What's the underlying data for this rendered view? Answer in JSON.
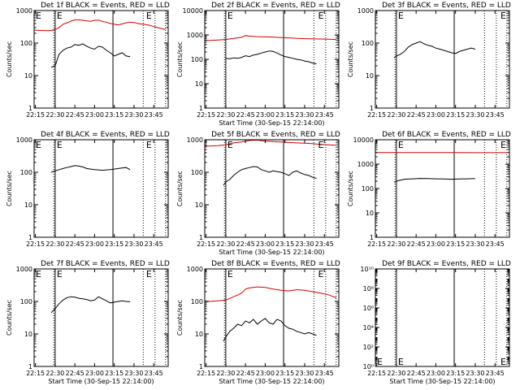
{
  "figure": {
    "x_tick_labels": [
      "22:15",
      "22:30",
      "22:45",
      "23:00",
      "23:15",
      "23:30",
      "23:45"
    ],
    "x_tick_hours": [
      22.25,
      22.5,
      22.75,
      23.0,
      23.25,
      23.5,
      23.75
    ],
    "x_range_hours": [
      22.2333,
      23.9333
    ],
    "xlabel": "Start Time (30-Sep-15 22:14:00)",
    "ylabel": "Counts/sec",
    "solid_vlines_hours": [
      22.5,
      23.233
    ],
    "dotted_vlines_hours": [
      22.483,
      23.617,
      23.767,
      23.9
    ],
    "marker_letter": "E",
    "colors": {
      "events": "#000000",
      "lld": "#d40000",
      "axes": "#000000",
      "background": "#ffffff"
    }
  },
  "chart_data": [
    {
      "type": "line",
      "title": "Det 1f BLACK = Events, RED = LLD",
      "xlabel": "",
      "ylabel": "Counts/sec",
      "y_scale": "log",
      "ylim": [
        1,
        1000
      ],
      "y_tick_labels": [
        "1",
        "10",
        "100",
        "1000"
      ],
      "markers": [
        {
          "label": "E",
          "x_hour": 22.233,
          "y": 1000
        },
        {
          "label": "E",
          "x_hour": 22.5,
          "y": 1000
        },
        {
          "label": "E",
          "x_hour": 23.633,
          "y": 1000
        }
      ],
      "series": [
        {
          "color": "#d40000",
          "x_hours": [
            22.233,
            22.4,
            22.45,
            22.5,
            22.55,
            22.6,
            22.65,
            22.7,
            22.75,
            22.8,
            22.85,
            22.9,
            22.95,
            23.0,
            23.05,
            23.1,
            23.15,
            23.2,
            23.25,
            23.3,
            23.35,
            23.4,
            23.45,
            23.5,
            23.55,
            23.6,
            23.65,
            23.7,
            23.75,
            23.8,
            23.85,
            23.9
          ],
          "values": [
            250,
            240,
            245,
            260,
            300,
            380,
            420,
            470,
            520,
            520,
            500,
            480,
            470,
            500,
            510,
            460,
            440,
            400,
            380,
            360,
            390,
            420,
            440,
            430,
            400,
            380,
            370,
            350,
            320,
            300,
            280,
            260
          ]
        },
        {
          "color": "#000000",
          "x_hours": [
            22.45,
            22.5,
            22.55,
            22.6,
            22.65,
            22.7,
            22.75,
            22.8,
            22.85,
            22.9,
            22.95,
            23.0,
            23.05,
            23.1,
            23.15,
            23.2,
            23.25,
            23.3,
            23.35,
            23.4,
            23.45
          ],
          "values": [
            18,
            20,
            45,
            60,
            70,
            75,
            90,
            85,
            95,
            80,
            70,
            65,
            80,
            75,
            60,
            50,
            40,
            45,
            50,
            40,
            38
          ]
        }
      ]
    },
    {
      "type": "line",
      "title": "Det 2f BLACK = Events, RED = LLD",
      "xlabel": "Start Time (30-Sep-15 22:14:00)",
      "ylabel": "Counts/sec",
      "y_scale": "log",
      "ylim": [
        1,
        10000
      ],
      "y_tick_labels": [
        "1",
        "10",
        "100",
        "1000",
        "10000"
      ],
      "markers": [
        {
          "label": "E",
          "x_hour": 22.5,
          "y": 10000
        },
        {
          "label": "E",
          "x_hour": 23.65,
          "y": 10000
        }
      ],
      "series": [
        {
          "color": "#d40000",
          "x_hours": [
            22.233,
            22.3,
            22.4,
            22.5,
            22.6,
            22.7,
            22.75,
            22.8,
            22.9,
            23.0,
            23.1,
            23.2,
            23.3,
            23.4,
            23.5,
            23.6,
            23.7,
            23.8,
            23.9
          ],
          "values": [
            600,
            600,
            620,
            650,
            720,
            800,
            950,
            900,
            850,
            830,
            820,
            780,
            760,
            720,
            700,
            690,
            680,
            670,
            650
          ]
        },
        {
          "color": "#000000",
          "x_hours": [
            22.5,
            22.55,
            22.6,
            22.65,
            22.7,
            22.75,
            22.8,
            22.85,
            22.9,
            22.95,
            23.0,
            23.05,
            23.1,
            23.15,
            23.2,
            23.25,
            23.3,
            23.35,
            23.4,
            23.45,
            23.5,
            23.55,
            23.6,
            23.65
          ],
          "values": [
            110,
            105,
            115,
            110,
            120,
            140,
            130,
            150,
            160,
            180,
            200,
            220,
            210,
            180,
            150,
            130,
            120,
            110,
            100,
            95,
            85,
            80,
            70,
            65
          ]
        }
      ]
    },
    {
      "type": "line",
      "title": "Det 3f BLACK = Events, RED = LLD",
      "xlabel": "",
      "ylabel": "Counts/sec",
      "y_scale": "log",
      "ylim": [
        1,
        1000
      ],
      "y_tick_labels": [
        "1",
        "10",
        "100",
        "1000"
      ],
      "markers": [
        {
          "label": "E",
          "x_hour": 22.5,
          "y": 1000
        },
        {
          "label": "E",
          "x_hour": 23.8,
          "y": 1000
        }
      ],
      "series": [
        {
          "color": "#000000",
          "x_hours": [
            22.47,
            22.5,
            22.55,
            22.6,
            22.65,
            22.7,
            22.75,
            22.8,
            22.85,
            22.9,
            22.95,
            23.0,
            23.05,
            23.1,
            23.15,
            23.2,
            23.25,
            23.3,
            23.35,
            23.4,
            23.45,
            23.5
          ],
          "values": [
            35,
            40,
            45,
            55,
            75,
            90,
            100,
            110,
            95,
            85,
            80,
            70,
            65,
            60,
            55,
            50,
            48,
            55,
            60,
            65,
            70,
            65
          ]
        }
      ]
    },
    {
      "type": "line",
      "title": "Det 4f BLACK = Events, RED = LLD",
      "xlabel": "",
      "ylabel": "Counts/sec",
      "y_scale": "log",
      "ylim": [
        1,
        1000
      ],
      "y_tick_labels": [
        "1",
        "10",
        "100",
        "1000"
      ],
      "markers": [
        {
          "label": "E",
          "x_hour": 22.233,
          "y": 1000
        },
        {
          "label": "E",
          "x_hour": 22.5,
          "y": 1000
        },
        {
          "label": "E",
          "x_hour": 23.633,
          "y": 1000
        }
      ],
      "series": [
        {
          "color": "#000000",
          "x_hours": [
            22.45,
            22.5,
            22.55,
            22.6,
            22.65,
            22.7,
            22.75,
            22.8,
            22.85,
            22.9,
            22.95,
            23.0,
            23.05,
            23.1,
            23.15,
            23.2,
            23.25,
            23.3,
            23.35,
            23.4,
            23.45
          ],
          "values": [
            100,
            110,
            120,
            130,
            140,
            150,
            160,
            155,
            145,
            130,
            125,
            120,
            118,
            115,
            118,
            120,
            125,
            130,
            135,
            140,
            120
          ]
        }
      ]
    },
    {
      "type": "line",
      "title": "Det 5f BLACK = Events, RED = LLD",
      "xlabel": "Start Time (30-Sep-15 22:14:00)",
      "ylabel": "Counts/sec",
      "y_scale": "log",
      "ylim": [
        1,
        1000
      ],
      "y_tick_labels": [
        "1",
        "10",
        "100",
        "1000"
      ],
      "markers": [
        {
          "label": "E",
          "x_hour": 22.5,
          "y": 1000
        },
        {
          "label": "E",
          "x_hour": 23.65,
          "y": 1000
        }
      ],
      "series": [
        {
          "color": "#d40000",
          "x_hours": [
            22.233,
            22.3,
            22.4,
            22.5,
            22.6,
            22.7,
            22.8,
            22.9,
            23.0,
            23.1,
            23.2,
            23.3,
            23.4,
            23.5,
            23.6,
            23.7,
            23.8,
            23.9
          ],
          "values": [
            650,
            640,
            660,
            700,
            800,
            850,
            950,
            980,
            900,
            880,
            850,
            820,
            800,
            780,
            760,
            720,
            700,
            680
          ]
        },
        {
          "color": "#000000",
          "x_hours": [
            22.47,
            22.5,
            22.55,
            22.6,
            22.65,
            22.7,
            22.75,
            22.8,
            22.85,
            22.9,
            22.95,
            23.0,
            23.05,
            23.1,
            23.15,
            23.2,
            23.25,
            23.3,
            23.35,
            23.4,
            23.45,
            23.5,
            23.55,
            23.6,
            23.65
          ],
          "values": [
            40,
            50,
            60,
            80,
            100,
            120,
            130,
            140,
            150,
            145,
            120,
            110,
            100,
            110,
            105,
            100,
            90,
            80,
            100,
            110,
            95,
            85,
            80,
            70,
            65
          ]
        }
      ]
    },
    {
      "type": "line",
      "title": "Det 6f BLACK = Events, RED = LLD",
      "xlabel": "",
      "ylabel": "Counts/sec",
      "y_scale": "log",
      "ylim": [
        1,
        10000
      ],
      "y_tick_labels": [
        "1",
        "10",
        "100",
        "1000",
        "10000"
      ],
      "markers": [
        {
          "label": "E",
          "x_hour": 22.5,
          "y": 10000
        },
        {
          "label": "E",
          "x_hour": 23.8,
          "y": 10000
        }
      ],
      "series": [
        {
          "color": "#d40000",
          "x_hours": [
            22.233,
            22.5,
            22.75,
            23.0,
            23.25,
            23.5,
            23.75,
            23.9
          ],
          "values": [
            3000,
            3000,
            3000,
            3000,
            3000,
            2950,
            2950,
            2950
          ]
        },
        {
          "color": "#000000",
          "x_hours": [
            22.47,
            22.5,
            22.6,
            22.7,
            22.8,
            22.9,
            23.0,
            23.1,
            23.2,
            23.3,
            23.4,
            23.5
          ],
          "values": [
            180,
            200,
            240,
            250,
            260,
            255,
            250,
            245,
            240,
            245,
            250,
            255
          ]
        }
      ]
    },
    {
      "type": "line",
      "title": "Det 7f BLACK = Events, RED = LLD",
      "xlabel": "Start Time (30-Sep-15 22:14:00)",
      "ylabel": "Counts/sec",
      "y_scale": "log",
      "ylim": [
        1,
        1000
      ],
      "y_tick_labels": [
        "1",
        "10",
        "100",
        "1000"
      ],
      "markers": [
        {
          "label": "E",
          "x_hour": 22.233,
          "y": 1000
        },
        {
          "label": "E",
          "x_hour": 22.5,
          "y": 1000
        },
        {
          "label": "E",
          "x_hour": 23.633,
          "y": 1000
        }
      ],
      "series": [
        {
          "color": "#000000",
          "x_hours": [
            22.45,
            22.5,
            22.55,
            22.6,
            22.65,
            22.7,
            22.75,
            22.8,
            22.85,
            22.9,
            22.95,
            23.0,
            23.05,
            23.1,
            23.15,
            23.2,
            23.25,
            23.3,
            23.35,
            23.4,
            23.45
          ],
          "values": [
            45,
            60,
            85,
            110,
            130,
            140,
            135,
            125,
            120,
            115,
            105,
            110,
            140,
            120,
            105,
            90,
            95,
            100,
            105,
            100,
            98
          ]
        }
      ]
    },
    {
      "type": "line",
      "title": "Det 8f BLACK = Events, RED = LLD",
      "xlabel": "Start Time (30-Sep-15 22:14:00)",
      "ylabel": "Counts/sec",
      "y_scale": "log",
      "ylim": [
        1,
        1000
      ],
      "y_tick_labels": [
        "1",
        "10",
        "100",
        "1000"
      ],
      "markers": [
        {
          "label": "E",
          "x_hour": 22.5,
          "y": 1000
        },
        {
          "label": "E",
          "x_hour": 23.65,
          "y": 1000
        }
      ],
      "series": [
        {
          "color": "#d40000",
          "x_hours": [
            22.233,
            22.3,
            22.4,
            22.5,
            22.6,
            22.7,
            22.75,
            22.8,
            22.9,
            23.0,
            23.1,
            23.2,
            23.3,
            23.4,
            23.5,
            23.6,
            23.7,
            23.8,
            23.9
          ],
          "values": [
            105,
            100,
            105,
            110,
            140,
            180,
            240,
            260,
            280,
            270,
            240,
            220,
            210,
            230,
            220,
            200,
            180,
            160,
            130
          ]
        },
        {
          "color": "#000000",
          "x_hours": [
            22.47,
            22.5,
            22.55,
            22.6,
            22.65,
            22.7,
            22.75,
            22.8,
            22.85,
            22.9,
            22.95,
            23.0,
            23.05,
            23.1,
            23.15,
            23.2,
            23.25,
            23.3,
            23.35,
            23.4,
            23.45,
            23.5,
            23.55,
            23.6,
            23.65
          ],
          "values": [
            6,
            8,
            12,
            15,
            20,
            18,
            25,
            22,
            28,
            20,
            25,
            30,
            22,
            20,
            28,
            25,
            18,
            15,
            14,
            12,
            11,
            10,
            11,
            10,
            9
          ]
        }
      ]
    },
    {
      "type": "line",
      "title": "Det 9f BLACK = Events, RED = LLD",
      "xlabel": "Start Time (30-Sep-15 22:14:00)",
      "ylabel": "",
      "y_scale": "log",
      "ylim": [
        1,
        10000000000.0
      ],
      "y_tick_labels": [
        "10⁰",
        "10²",
        "10⁴",
        "10⁶",
        "10⁸",
        "10¹⁰"
      ],
      "y_tick_values": [
        1,
        100,
        10000,
        1000000,
        100000000,
        10000000000
      ],
      "markers": [
        {
          "label": "E",
          "x_hour": 22.233,
          "y": 1
        },
        {
          "label": "E",
          "x_hour": 22.5,
          "y": 1
        },
        {
          "label": "E",
          "x_hour": 23.8,
          "y": 1
        }
      ],
      "series": []
    }
  ]
}
